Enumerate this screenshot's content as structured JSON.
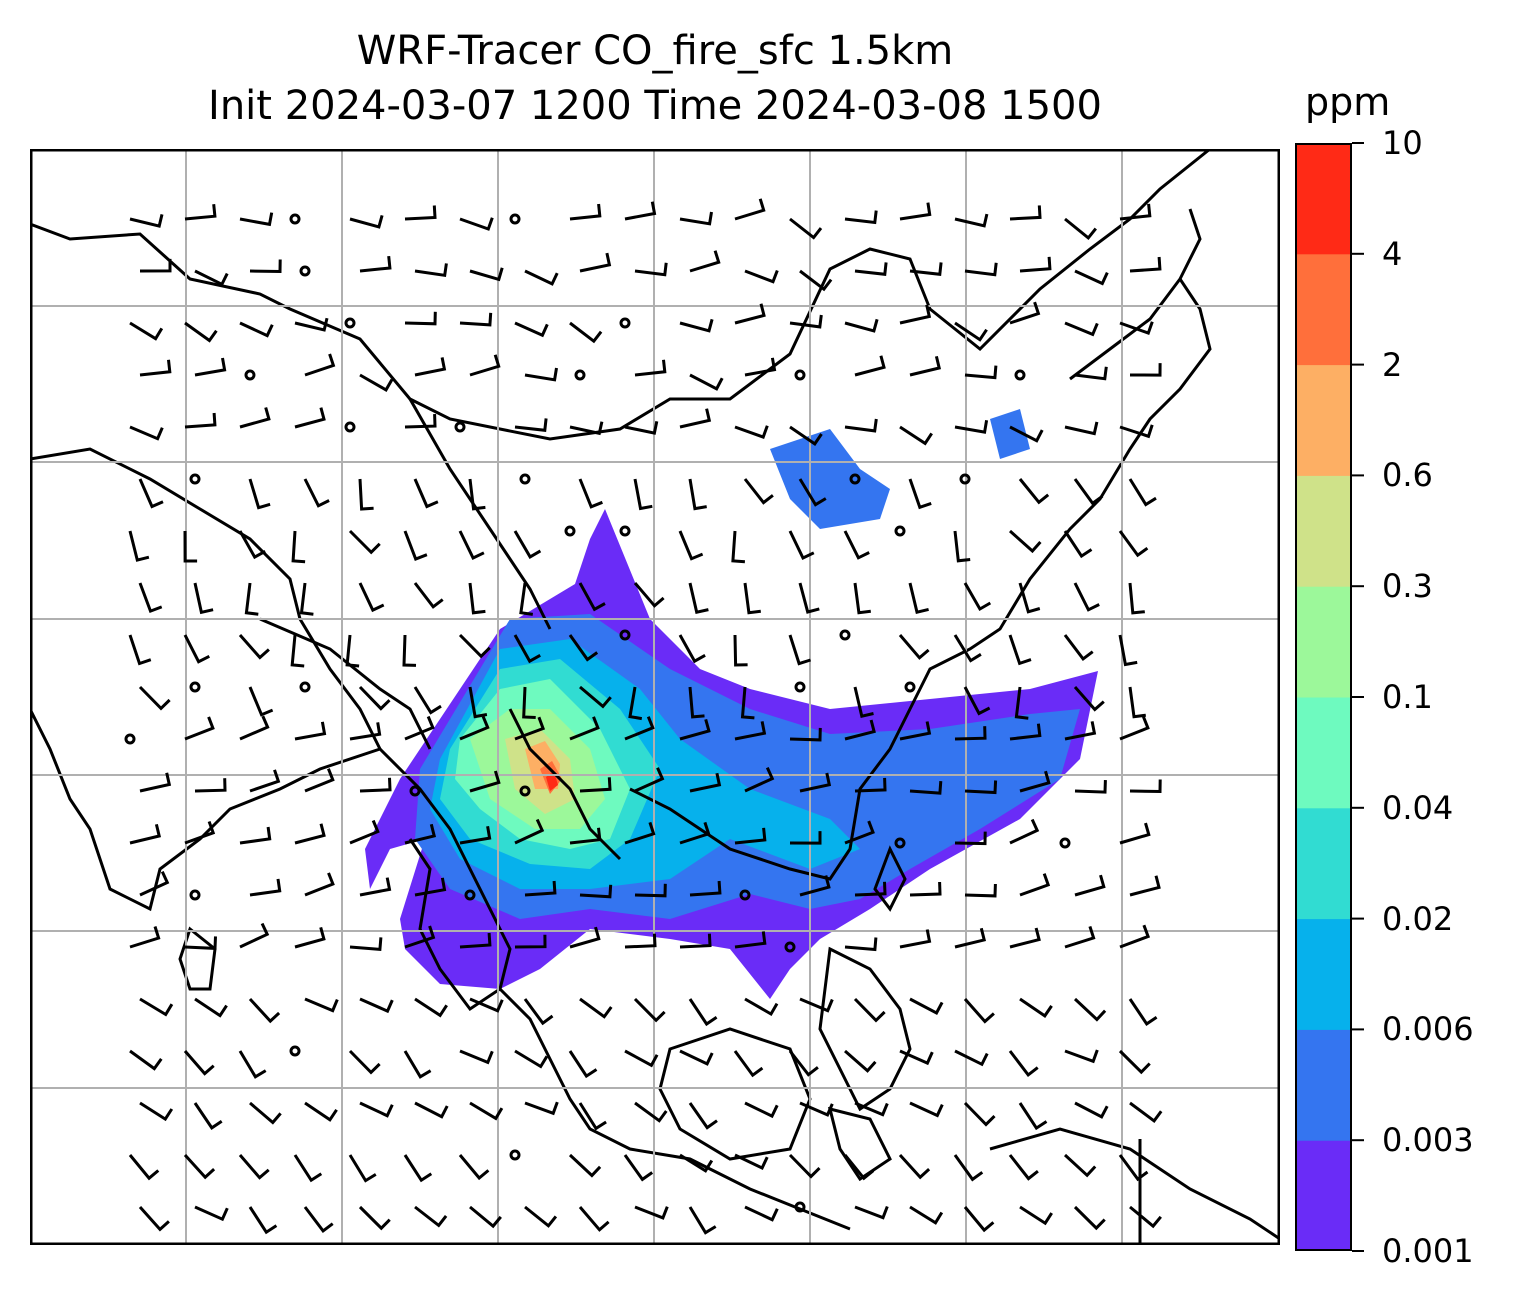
{
  "title_line1": "WRF-Tracer CO_fire_sfc 1.5km",
  "title_line2": "Init 2024-03-07 1200 Time 2024-03-08 1500",
  "map": {
    "variable": "CO_fire_sfc",
    "grid": "on",
    "features": [
      "coastlines",
      "country borders",
      "wind barbs",
      "tracer concentration fill"
    ]
  },
  "colorbar": {
    "unit": "ppm",
    "orientation": "vertical",
    "levels": [
      "0.001",
      "0.003",
      "0.006",
      "0.02",
      "0.04",
      "0.1",
      "0.3",
      "0.6",
      "2",
      "4",
      "10"
    ],
    "colors": [
      "#6a2cf7",
      "#3475f0",
      "#06b1ec",
      "#31dcd2",
      "#6efabf",
      "#9cf89a",
      "#cfe289",
      "#fdaf64",
      "#ff6f3b",
      "#ff2a16"
    ]
  }
}
